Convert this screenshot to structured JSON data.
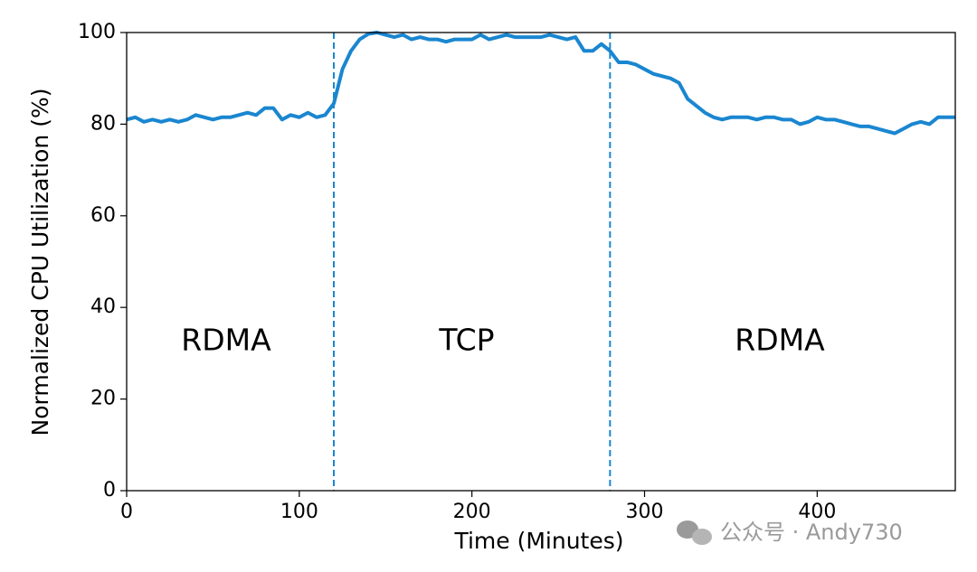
{
  "chart_data": {
    "type": "line",
    "xlabel": "Time (Minutes)",
    "ylabel": "Normalized CPU Utilization (%)",
    "x": [
      0,
      5,
      10,
      15,
      20,
      25,
      30,
      35,
      40,
      45,
      50,
      55,
      60,
      65,
      70,
      75,
      80,
      85,
      90,
      95,
      100,
      105,
      110,
      115,
      120,
      125,
      130,
      135,
      140,
      145,
      150,
      155,
      160,
      165,
      170,
      175,
      180,
      185,
      190,
      195,
      200,
      205,
      210,
      215,
      220,
      225,
      230,
      235,
      240,
      245,
      250,
      255,
      260,
      265,
      270,
      275,
      280,
      285,
      290,
      295,
      300,
      305,
      310,
      315,
      320,
      325,
      330,
      335,
      340,
      345,
      350,
      355,
      360,
      365,
      370,
      375,
      380,
      385,
      390,
      395,
      400,
      405,
      410,
      415,
      420,
      425,
      430,
      435,
      440,
      445,
      450,
      455,
      460,
      465,
      470,
      475,
      480
    ],
    "series": [
      {
        "color": "#1a86d0",
        "values": [
          81,
          81.5,
          80.5,
          81,
          80.5,
          81,
          80.5,
          81,
          82,
          81.5,
          81,
          81.5,
          81.5,
          82,
          82.5,
          82,
          83.5,
          83.5,
          81,
          82,
          81.5,
          82.5,
          81.5,
          82,
          84.5,
          92,
          96,
          98.5,
          99.7,
          100,
          99.5,
          99,
          99.5,
          98.5,
          99,
          98.5,
          98.5,
          98,
          98.5,
          98.5,
          98.5,
          99.5,
          98.5,
          99,
          99.5,
          99,
          99,
          99,
          99,
          99.5,
          99,
          98.5,
          99,
          96,
          96,
          97.5,
          96,
          93.5,
          93.5,
          93,
          92,
          91,
          90.5,
          90,
          89,
          85.5,
          84,
          82.5,
          81.5,
          81,
          81.5,
          81.5,
          81.5,
          81,
          81.5,
          81.5,
          81,
          81,
          80,
          80.5,
          81.5,
          81,
          81,
          80.5,
          80,
          79.5,
          79.5,
          79,
          78.5,
          78,
          79,
          80,
          80.5,
          80,
          81.5,
          81.5,
          81.5
        ]
      }
    ],
    "vlines": [
      120,
      280
    ],
    "annotations": [
      "RDMA",
      "TCP",
      "RDMA"
    ],
    "xlim": [
      0,
      480
    ],
    "ylim": [
      0,
      100
    ],
    "xticks": [
      0,
      100,
      200,
      300,
      400
    ],
    "yticks": [
      0,
      20,
      40,
      60,
      80,
      100
    ]
  },
  "watermark": "公众号 · Andy730"
}
